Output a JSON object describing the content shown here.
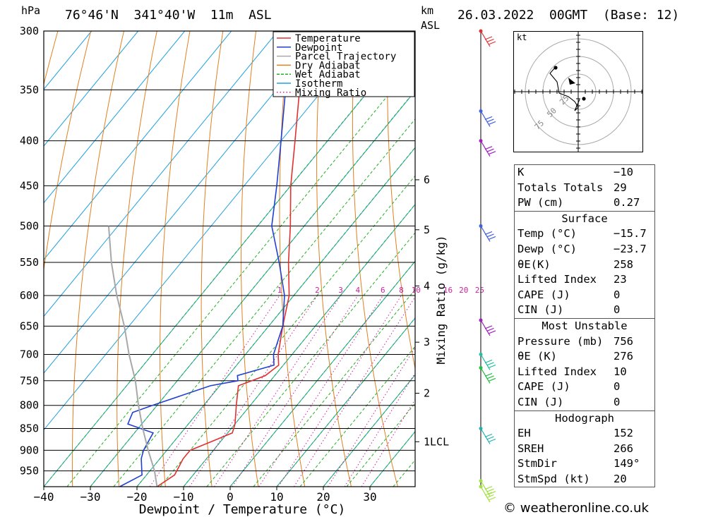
{
  "header": {
    "pressure_unit": "hPa",
    "location": "76°46'N  341°40'W  11m  ASL",
    "km_unit": "km",
    "asl_label": "ASL",
    "datetime": "26.03.2022  00GMT  (Base: 12)"
  },
  "chart_data": {
    "type": "skew-t",
    "xlabel": "Dewpoint / Temperature (°C)",
    "ylabel": "hPa",
    "y2label": "Mixing Ratio (g/kg)",
    "x_ticks": [
      -40,
      -30,
      -20,
      -10,
      0,
      10,
      20,
      30
    ],
    "x_tick_labels": [
      "−40",
      "−30",
      "−20",
      "−10",
      "0",
      "10",
      "20",
      "30"
    ],
    "pressure_ticks": [
      300,
      350,
      400,
      450,
      500,
      550,
      600,
      650,
      700,
      750,
      800,
      850,
      900,
      950
    ],
    "pressure_range": [
      1000,
      300
    ],
    "km_ticks": [
      {
        "label": "6",
        "p": 443
      },
      {
        "label": "5",
        "p": 505
      },
      {
        "label": "4",
        "p": 585
      },
      {
        "label": "3",
        "p": 678
      },
      {
        "label": "2",
        "p": 775
      },
      {
        "label": "1LCL",
        "p": 880
      }
    ],
    "mixing_ratio_labels": [
      "1",
      "2",
      "3",
      "4",
      "6",
      "8",
      "10",
      "16",
      "20",
      "25"
    ],
    "mixing_ratio_values": [
      1,
      2,
      3,
      4,
      6,
      8,
      10,
      16,
      20,
      25
    ],
    "legend": [
      {
        "name": "Temperature",
        "color": "#e03030",
        "style": "solid"
      },
      {
        "name": "Dewpoint",
        "color": "#2040d0",
        "style": "solid"
      },
      {
        "name": "Parcel Trajectory",
        "color": "#a8a8a8",
        "style": "solid"
      },
      {
        "name": "Dry Adiabat",
        "color": "#e08020",
        "style": "solid"
      },
      {
        "name": "Wet Adiabat",
        "color": "#20b020",
        "style": "dashed"
      },
      {
        "name": "Isotherm",
        "color": "#20a0e0",
        "style": "solid"
      },
      {
        "name": "Mixing Ratio",
        "color": "#d020a0",
        "style": "dotted"
      }
    ],
    "series": [
      {
        "name": "Temperature",
        "points": [
          [
            990,
            -15.7
          ],
          [
            960,
            -14
          ],
          [
            920,
            -15
          ],
          [
            900,
            -15
          ],
          [
            880,
            -12
          ],
          [
            860,
            -9
          ],
          [
            840,
            -10
          ],
          [
            800,
            -13
          ],
          [
            760,
            -16
          ],
          [
            750,
            -14
          ],
          [
            740,
            -12
          ],
          [
            720,
            -11
          ],
          [
            700,
            -13
          ],
          [
            650,
            -17
          ],
          [
            600,
            -21
          ],
          [
            550,
            -27
          ],
          [
            500,
            -33
          ],
          [
            450,
            -40
          ],
          [
            400,
            -47
          ],
          [
            350,
            -55
          ],
          [
            300,
            -63
          ]
        ]
      },
      {
        "name": "Dewpoint",
        "points": [
          [
            990,
            -23.7
          ],
          [
            960,
            -21
          ],
          [
            920,
            -24
          ],
          [
            900,
            -25
          ],
          [
            860,
            -26
          ],
          [
            840,
            -33
          ],
          [
            815,
            -34
          ],
          [
            800,
            -31
          ],
          [
            760,
            -22
          ],
          [
            750,
            -17
          ],
          [
            740,
            -18
          ],
          [
            720,
            -12
          ],
          [
            700,
            -14
          ],
          [
            650,
            -17
          ],
          [
            600,
            -22
          ],
          [
            550,
            -29
          ],
          [
            500,
            -37
          ],
          [
            450,
            -43
          ],
          [
            400,
            -50
          ],
          [
            350,
            -58
          ],
          [
            300,
            -66
          ]
        ]
      },
      {
        "name": "Parcel Trajectory",
        "points": [
          [
            990,
            -15.7
          ],
          [
            950,
            -19
          ],
          [
            900,
            -24
          ],
          [
            850,
            -29
          ],
          [
            800,
            -34
          ],
          [
            750,
            -39
          ],
          [
            700,
            -45
          ],
          [
            650,
            -51
          ],
          [
            600,
            -58
          ],
          [
            550,
            -65
          ],
          [
            500,
            -72
          ]
        ]
      }
    ]
  },
  "hodograph": {
    "unit": "kt",
    "ring_labels": [
      "25",
      "50",
      "75"
    ]
  },
  "wind_barbs": {
    "levels_hpa": [
      300,
      370,
      400,
      500,
      640,
      700,
      725,
      850,
      975,
      990
    ]
  },
  "indices": {
    "general": [
      {
        "label": "K",
        "value": "−10"
      },
      {
        "label": "Totals Totals",
        "value": "29"
      },
      {
        "label": "PW (cm)",
        "value": "0.27"
      }
    ],
    "surface_title": "Surface",
    "surface": [
      {
        "label": "Temp (°C)",
        "value": "−15.7"
      },
      {
        "label": "Dewp (°C)",
        "value": "−23.7"
      },
      {
        "label": "θE(K)",
        "value": "258"
      },
      {
        "label": "Lifted Index",
        "value": "23"
      },
      {
        "label": "CAPE (J)",
        "value": "0"
      },
      {
        "label": "CIN (J)",
        "value": "0"
      }
    ],
    "mu_title": "Most Unstable",
    "most_unstable": [
      {
        "label": "Pressure (mb)",
        "value": "756"
      },
      {
        "label": "θE (K)",
        "value": "276"
      },
      {
        "label": "Lifted Index",
        "value": "10"
      },
      {
        "label": "CAPE (J)",
        "value": "0"
      },
      {
        "label": "CIN (J)",
        "value": "0"
      }
    ],
    "hodo_title": "Hodograph",
    "hodograph_params": [
      {
        "label": "EH",
        "value": "152"
      },
      {
        "label": "SREH",
        "value": "266"
      },
      {
        "label": "StmDir",
        "value": "149°"
      },
      {
        "label": "StmSpd (kt)",
        "value": "20"
      }
    ]
  },
  "footer": {
    "copyright": "© weatheronline.co.uk"
  },
  "colors": {
    "temperature": "#e03030",
    "dewpoint": "#2040d0",
    "parcel": "#a8a8a8",
    "dry_adiabat": "#e08020",
    "wet_adiabat": "#20b020",
    "isotherm": "#20a0e0",
    "mixing_ratio": "#d020a0"
  }
}
